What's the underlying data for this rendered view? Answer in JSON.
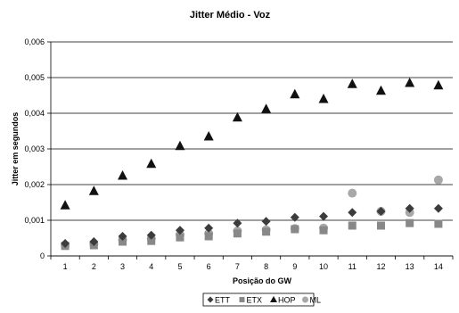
{
  "chart_data": {
    "type": "scatter",
    "title": "Jitter Médio - Voz",
    "xlabel": "Posição do GW",
    "ylabel": "Jitter em segundos",
    "x": [
      1,
      2,
      3,
      4,
      5,
      6,
      7,
      8,
      9,
      10,
      11,
      12,
      13,
      14
    ],
    "xlim": [
      0.5,
      14.5
    ],
    "ylim": [
      0,
      0.006
    ],
    "yticks": [
      "0",
      "0,001",
      "0,002",
      "0,003",
      "0,004",
      "0,005",
      "0,006"
    ],
    "xticks": [
      "1",
      "2",
      "3",
      "4",
      "5",
      "6",
      "7",
      "8",
      "9",
      "10",
      "11",
      "12",
      "13",
      "14"
    ],
    "grid": "horizontal",
    "legend_position": "bottom-center",
    "series": [
      {
        "name": "ETT",
        "marker": "diamond",
        "color": "#3c3c3c",
        "values": [
          0.00035,
          0.0004,
          0.00055,
          0.00058,
          0.00072,
          0.00078,
          0.00092,
          0.00097,
          0.00108,
          0.00111,
          0.00122,
          0.00125,
          0.00133,
          0.00133
        ]
      },
      {
        "name": "ETX",
        "marker": "square",
        "color": "#888888",
        "values": [
          0.00028,
          0.0003,
          0.0004,
          0.00042,
          0.00052,
          0.00055,
          0.00063,
          0.00068,
          0.00075,
          0.00072,
          0.00085,
          0.00085,
          0.00092,
          0.0009
        ]
      },
      {
        "name": "HOP",
        "marker": "triangle",
        "color": "#111111",
        "values": [
          0.00142,
          0.00182,
          0.00225,
          0.00258,
          0.00308,
          0.00335,
          0.00388,
          0.00412,
          0.00453,
          0.0044,
          0.00482,
          0.00463,
          0.00485,
          0.00478
        ]
      },
      {
        "name": "ML",
        "marker": "circle",
        "color": "#a8a8a8",
        "values": [
          0.0003,
          0.00033,
          0.00045,
          0.00048,
          0.0006,
          0.00063,
          0.0007,
          0.00073,
          0.00077,
          0.00078,
          0.00176,
          0.00125,
          0.00122,
          0.00213
        ]
      }
    ]
  }
}
